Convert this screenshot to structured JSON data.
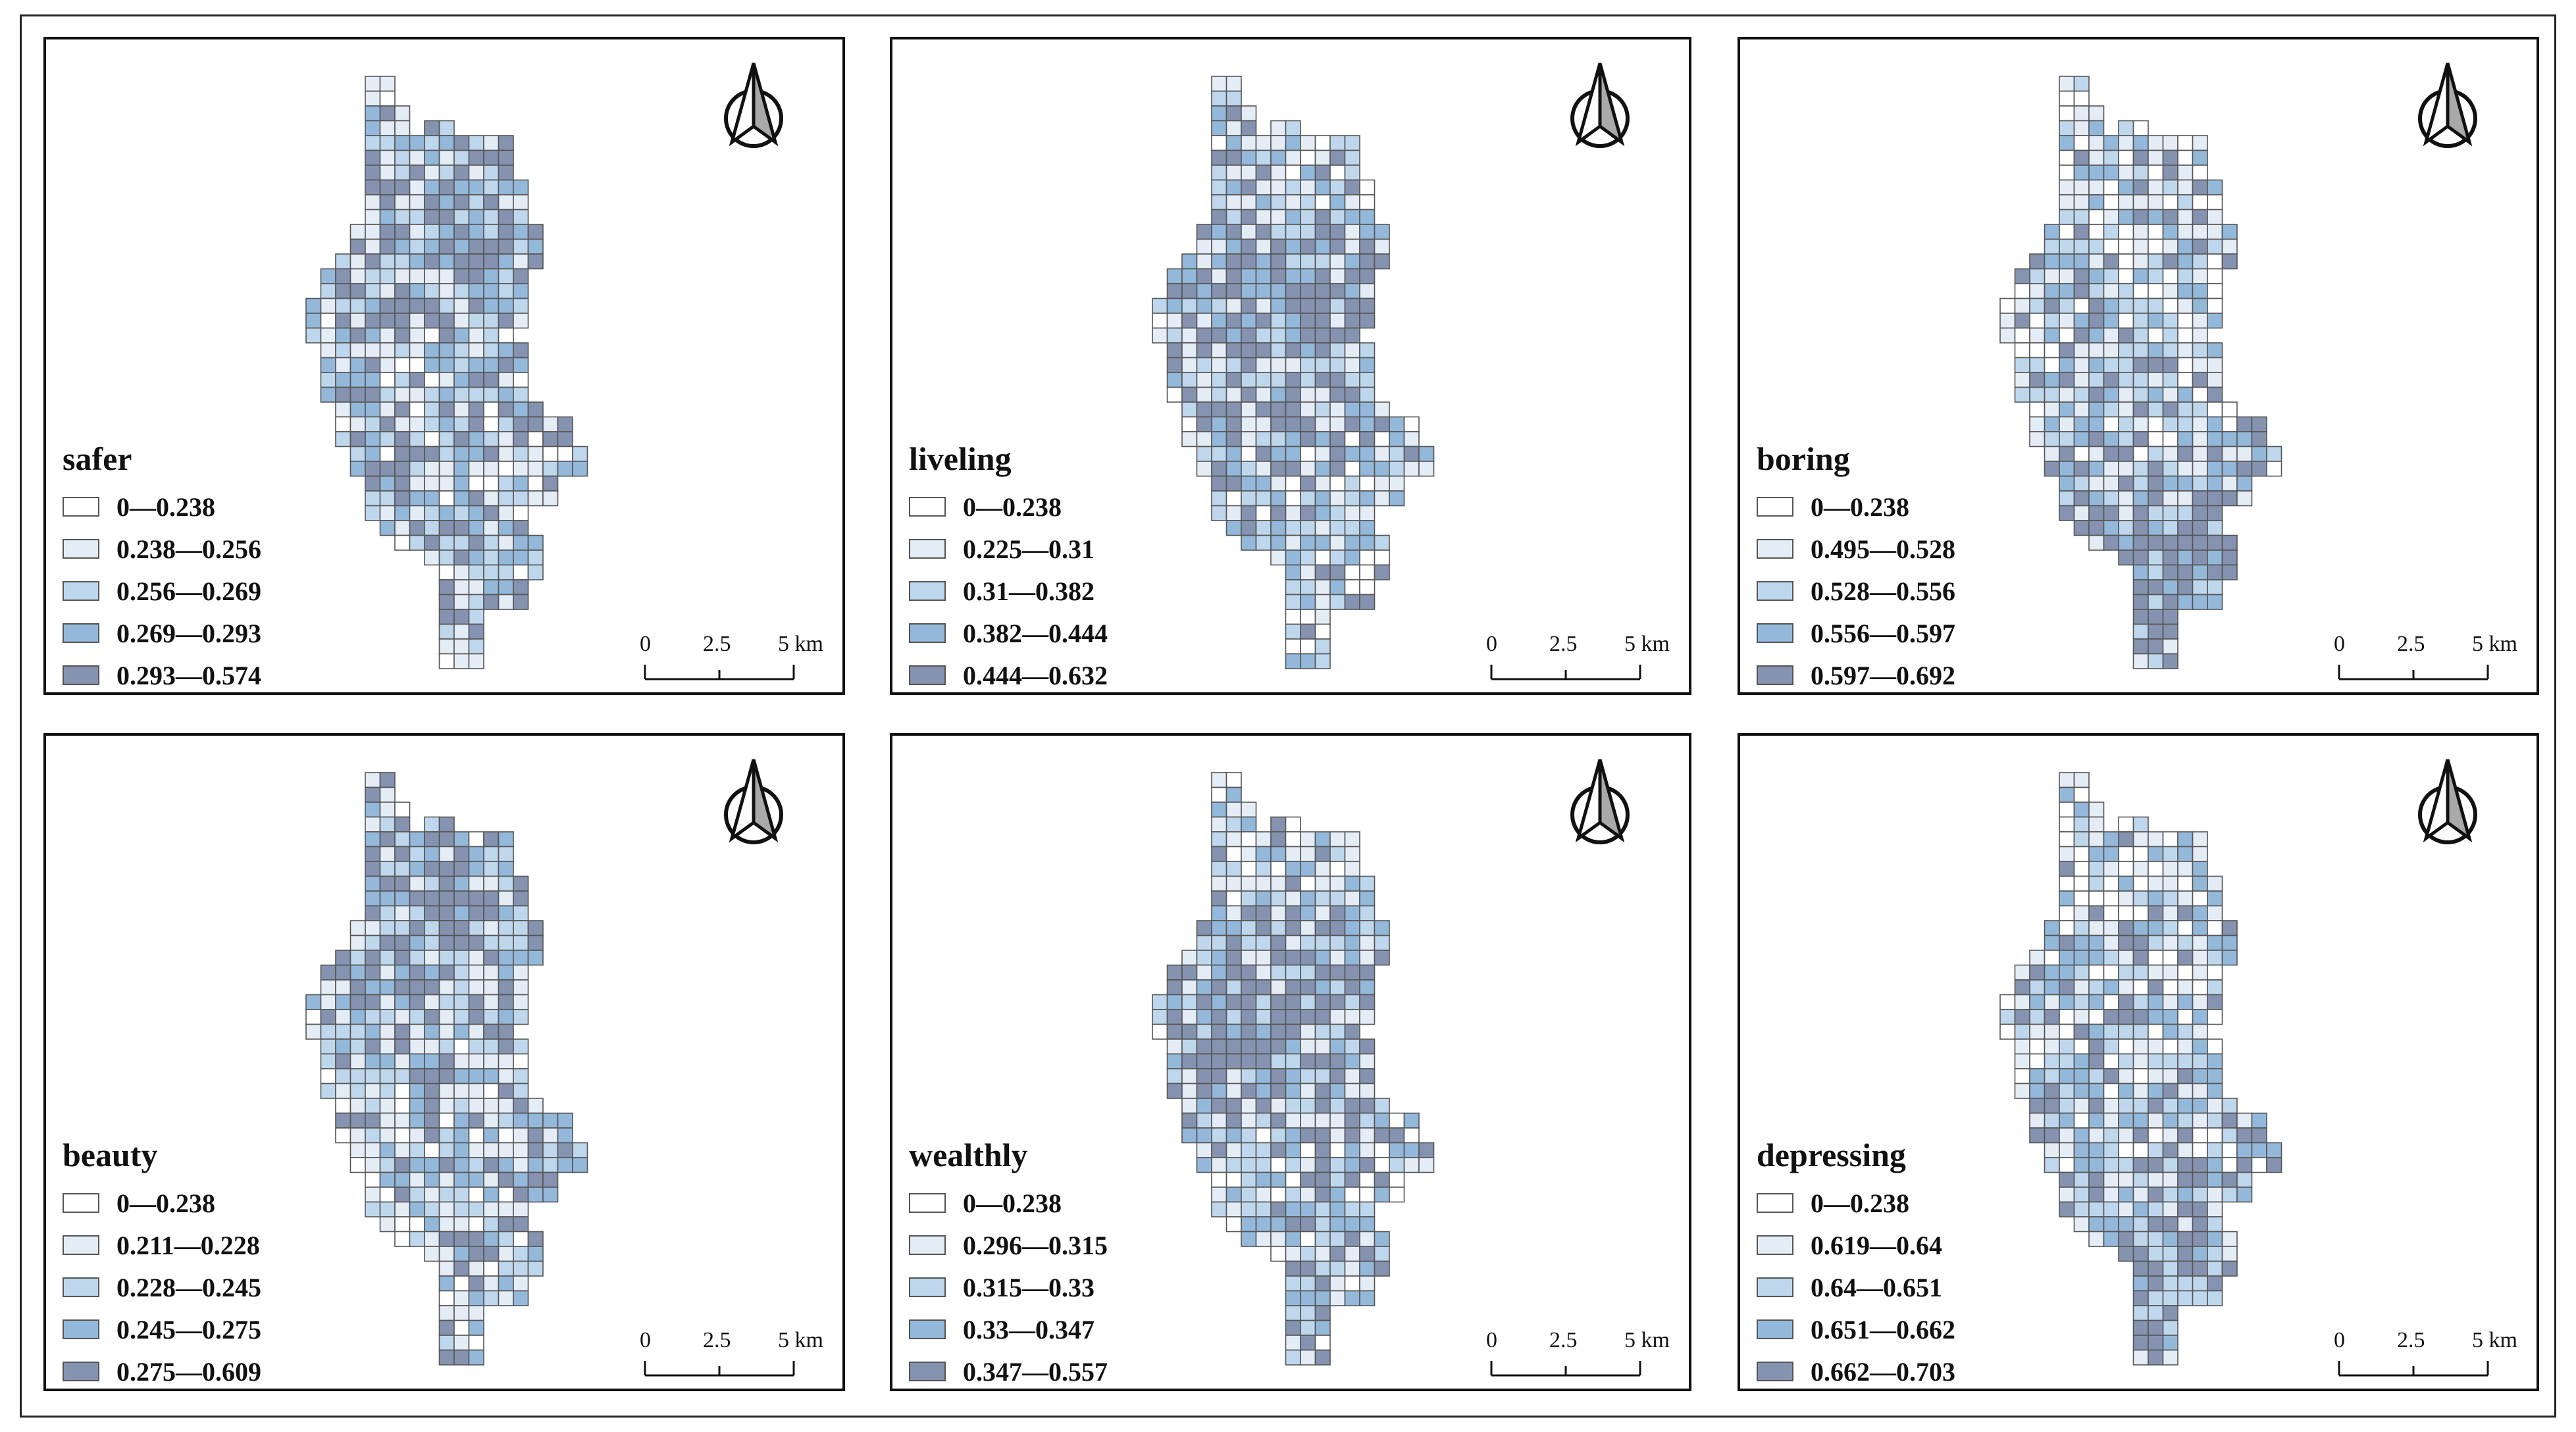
{
  "colors": {
    "class0": "#ffffff",
    "class1": "#e4ecf6",
    "class2": "#bed7ec",
    "class3": "#93b8da",
    "class4": "#8593b0",
    "cell_border": "#555555"
  },
  "scale_bar": {
    "labels": [
      "0",
      "2.5",
      "5 km"
    ]
  },
  "north_arrow_icon": "north-arrow-icon",
  "panels": [
    {
      "title": "safer",
      "legend": [
        "0—0.238",
        "0.238—0.256",
        "0.256—0.269",
        "0.269—0.293",
        "0.293—0.574"
      ],
      "map_seed": 11,
      "emphasis": "north-center"
    },
    {
      "title": "liveling",
      "legend": [
        "0—0.238",
        "0.225—0.31",
        "0.31—0.382",
        "0.382—0.444",
        "0.444—0.632"
      ],
      "map_seed": 23,
      "emphasis": "center"
    },
    {
      "title": "boring",
      "legend": [
        "0—0.238",
        "0.495—0.528",
        "0.528—0.556",
        "0.556—0.597",
        "0.597—0.692"
      ],
      "map_seed": 37,
      "emphasis": "south-east"
    },
    {
      "title": "beauty",
      "legend": [
        "0—0.238",
        "0.211—0.228",
        "0.228—0.245",
        "0.245—0.275",
        "0.275—0.609"
      ],
      "map_seed": 41,
      "emphasis": "north-center"
    },
    {
      "title": "wealthly",
      "legend": [
        "0—0.238",
        "0.296—0.315",
        "0.315—0.33",
        "0.33—0.347",
        "0.347—0.557"
      ],
      "map_seed": 53,
      "emphasis": "center"
    },
    {
      "title": "depressing",
      "legend": [
        "0—0.238",
        "0.619—0.64",
        "0.64—0.651",
        "0.651—0.662",
        "0.662—0.703"
      ],
      "map_seed": 67,
      "emphasis": "south-east"
    }
  ]
}
